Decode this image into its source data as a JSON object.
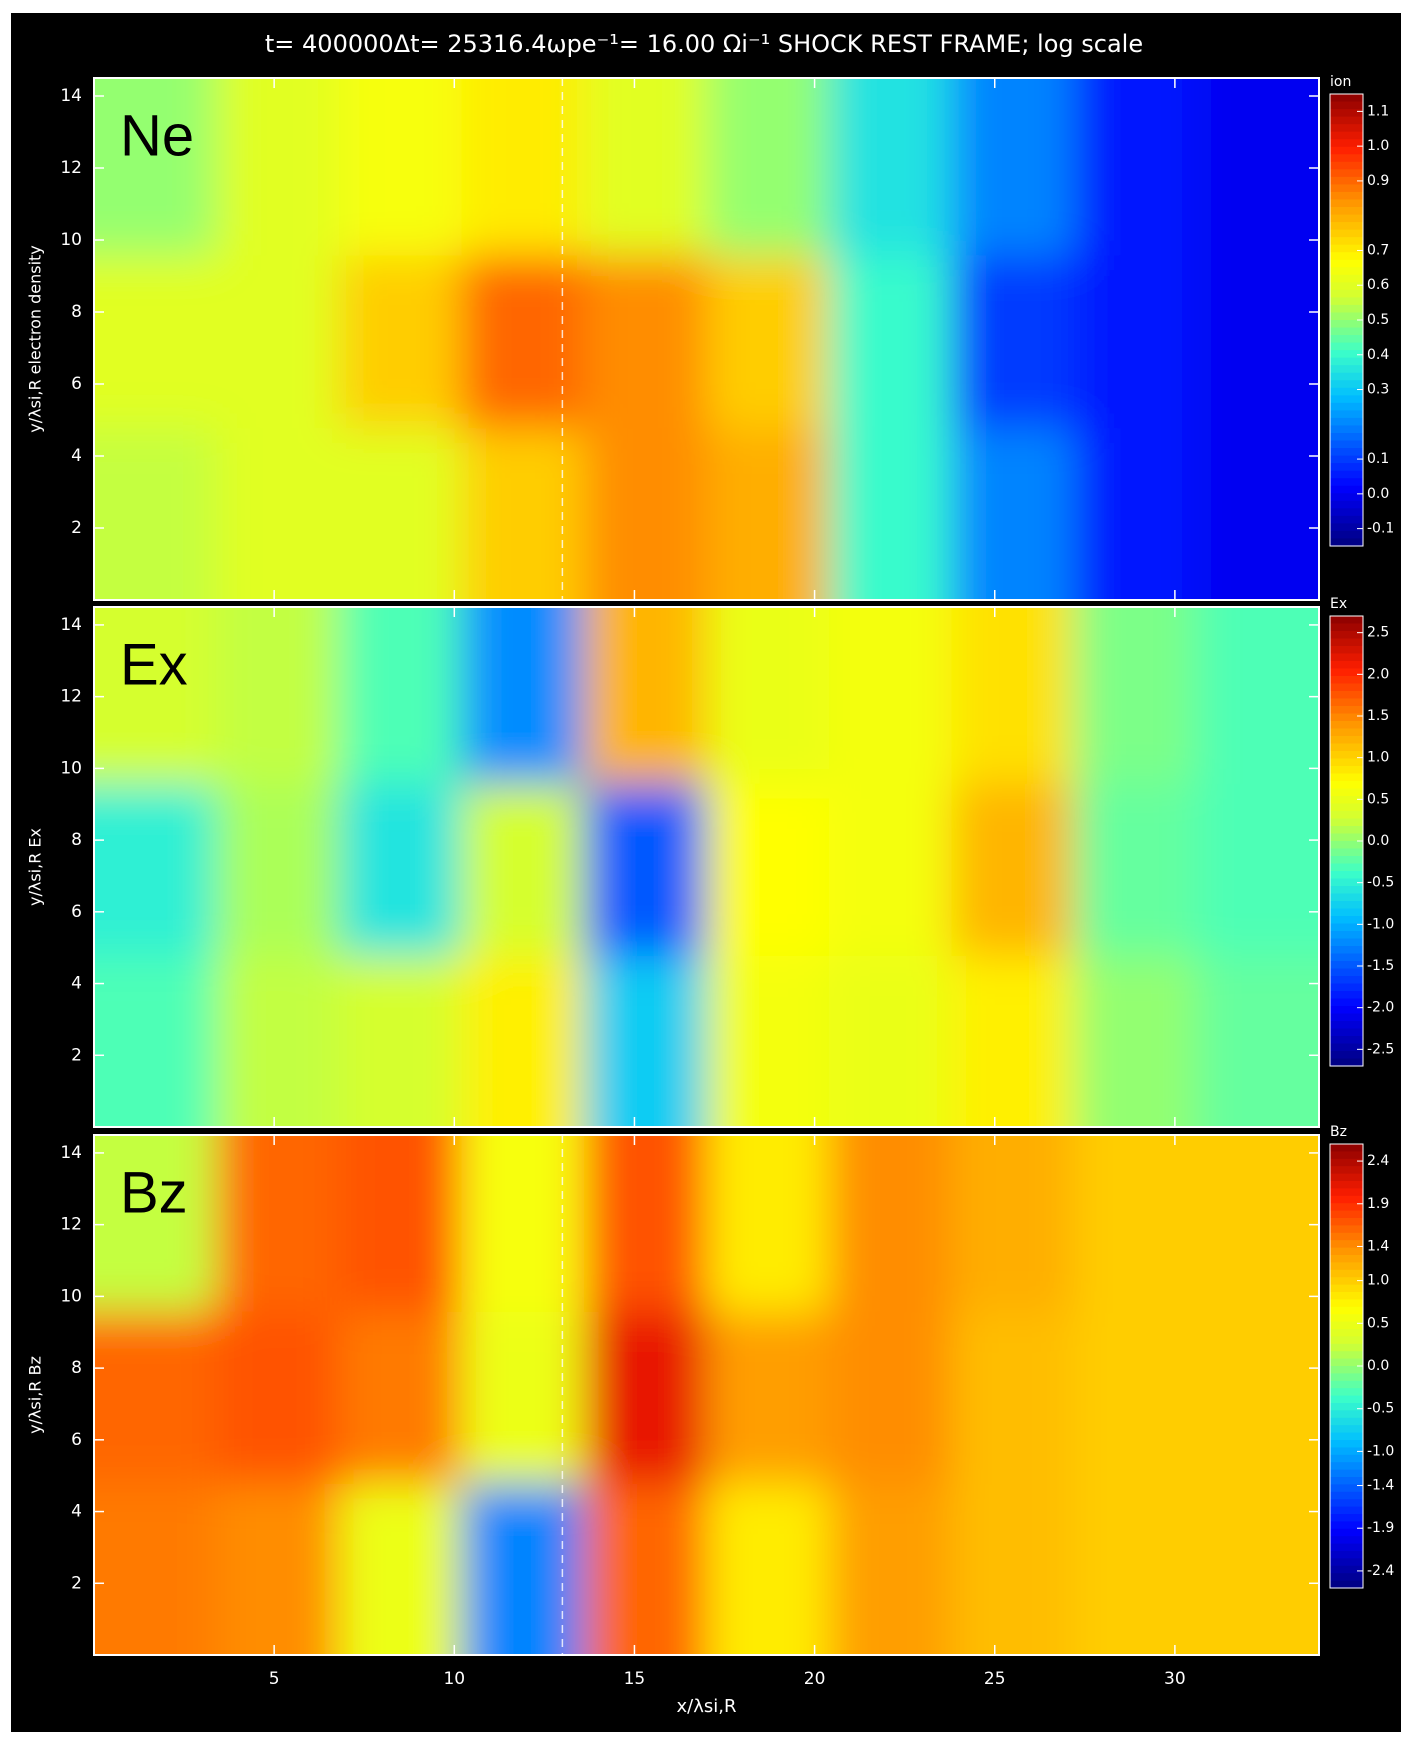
{
  "chart_data": [
    {
      "type": "heatmap",
      "title": "t= 400000Δt= 25316.4ωpe⁻¹= 16.00 Ωi⁻¹     SHOCK REST FRAME; log scale",
      "label": "Ne",
      "ylabel": "y/λsi,R    electron density",
      "colorbar_title": "ion",
      "xlim": [
        0,
        34
      ],
      "ylim": [
        0,
        14.5
      ],
      "yticks": [
        2,
        4,
        6,
        8,
        10,
        12,
        14
      ],
      "x_edges": [
        0,
        3.4,
        6.8,
        10.2,
        13.6,
        17,
        20.4,
        23.8,
        27.2,
        30.6,
        34
      ],
      "y_edges": [
        0,
        4.8,
        9.6,
        14.5
      ],
      "z": [
        [
          0.55,
          0.6,
          0.6,
          0.75,
          0.85,
          0.8,
          0.4,
          0.2,
          0.05,
          0.0
        ],
        [
          0.6,
          0.6,
          0.75,
          0.9,
          0.85,
          0.75,
          0.4,
          0.1,
          0.05,
          0.0
        ],
        [
          0.5,
          0.6,
          0.65,
          0.7,
          0.6,
          0.5,
          0.35,
          0.2,
          0.05,
          0.0
        ]
      ],
      "zlim": [
        -0.15,
        1.15
      ],
      "zticks": [
        {
          "value": 1.1,
          "label": "1.1"
        },
        {
          "value": 1,
          "label": "1.0"
        },
        {
          "value": 0.9,
          "label": "0.9"
        },
        {
          "value": 0.7,
          "label": "0.7"
        },
        {
          "value": 0.6,
          "label": "0.6"
        },
        {
          "value": 0.5,
          "label": "0.5"
        },
        {
          "value": 0.4,
          "label": "0.4"
        },
        {
          "value": 0.3,
          "label": "0.3"
        },
        {
          "value": 0.1,
          "label": "0.1"
        },
        {
          "value": 0,
          "label": "0.0"
        },
        {
          "value": -0.1,
          "label": "-0.1"
        }
      ],
      "shock_line_x": 13
    },
    {
      "type": "heatmap",
      "label": "Ex",
      "ylabel": "y/λsi,R    Ex",
      "colorbar_title": "Ex",
      "xlim": [
        0,
        34
      ],
      "ylim": [
        0,
        14.5
      ],
      "yticks": [
        2,
        4,
        6,
        8,
        10,
        12,
        14
      ],
      "x_edges": [
        0,
        3.4,
        6.8,
        10.2,
        13.6,
        17,
        20.4,
        23.8,
        27.2,
        30.6,
        34
      ],
      "y_edges": [
        0,
        4.8,
        9.6,
        14.5
      ],
      "z": [
        [
          -0.3,
          0.2,
          0.3,
          0.8,
          -0.8,
          0.6,
          0.5,
          0.8,
          0.0,
          -0.2
        ],
        [
          -0.5,
          0.1,
          -0.6,
          0.3,
          -1.5,
          0.7,
          0.6,
          1.2,
          -0.2,
          -0.3
        ],
        [
          0.3,
          0.2,
          -0.3,
          -1.2,
          1.2,
          0.5,
          0.6,
          0.9,
          -0.1,
          -0.3
        ]
      ],
      "zlim": [
        -2.7,
        2.7
      ],
      "zticks": [
        {
          "value": 2.5,
          "label": "2.5"
        },
        {
          "value": 2,
          "label": "2.0"
        },
        {
          "value": 1.5,
          "label": "1.5"
        },
        {
          "value": 1,
          "label": "1.0"
        },
        {
          "value": 0.5,
          "label": "0.5"
        },
        {
          "value": 0,
          "label": "0.0"
        },
        {
          "value": -0.5,
          "label": "-0.5"
        },
        {
          "value": -1,
          "label": "-1.0"
        },
        {
          "value": -1.5,
          "label": "-1.5"
        },
        {
          "value": -2,
          "label": "-2.0"
        },
        {
          "value": -2.5,
          "label": "-2.5"
        }
      ]
    },
    {
      "type": "heatmap",
      "label": "Bz",
      "ylabel": "y/λsi,R    Bz",
      "colorbar_title": "Bz",
      "xlabel": "x/λsi,R",
      "xlim": [
        0,
        34
      ],
      "ylim": [
        0,
        14.5
      ],
      "xticks": [
        5,
        10,
        15,
        20,
        25,
        30
      ],
      "yticks": [
        2,
        4,
        6,
        8,
        10,
        12,
        14
      ],
      "x_edges": [
        0,
        3.4,
        6.8,
        10.2,
        13.6,
        17,
        20.4,
        23.8,
        27.2,
        30.6,
        34
      ],
      "y_edges": [
        0,
        4.8,
        9.6,
        14.5
      ],
      "z": [
        [
          1.5,
          1.4,
          0.5,
          -1.2,
          1.6,
          0.8,
          1.3,
          1.1,
          1.0,
          1.0
        ],
        [
          1.6,
          1.7,
          1.5,
          0.5,
          2.1,
          1.3,
          1.4,
          1.1,
          1.0,
          1.0
        ],
        [
          0.2,
          1.6,
          1.7,
          0.6,
          1.7,
          0.8,
          1.4,
          1.2,
          1.0,
          1.0
        ]
      ],
      "zlim": [
        -2.6,
        2.6
      ],
      "zticks": [
        {
          "value": 2.4,
          "label": "2.4"
        },
        {
          "value": 1.9,
          "label": "1.9"
        },
        {
          "value": 1.4,
          "label": "1.4"
        },
        {
          "value": 1,
          "label": "1.0"
        },
        {
          "value": 0.5,
          "label": "0.5"
        },
        {
          "value": 0,
          "label": "0.0"
        },
        {
          "value": -0.5,
          "label": "-0.5"
        },
        {
          "value": -1,
          "label": "-1.0"
        },
        {
          "value": -1.4,
          "label": "-1.4"
        },
        {
          "value": -1.9,
          "label": "-1.9"
        },
        {
          "value": -2.4,
          "label": "-2.4"
        }
      ],
      "shock_line_x": 13
    }
  ]
}
